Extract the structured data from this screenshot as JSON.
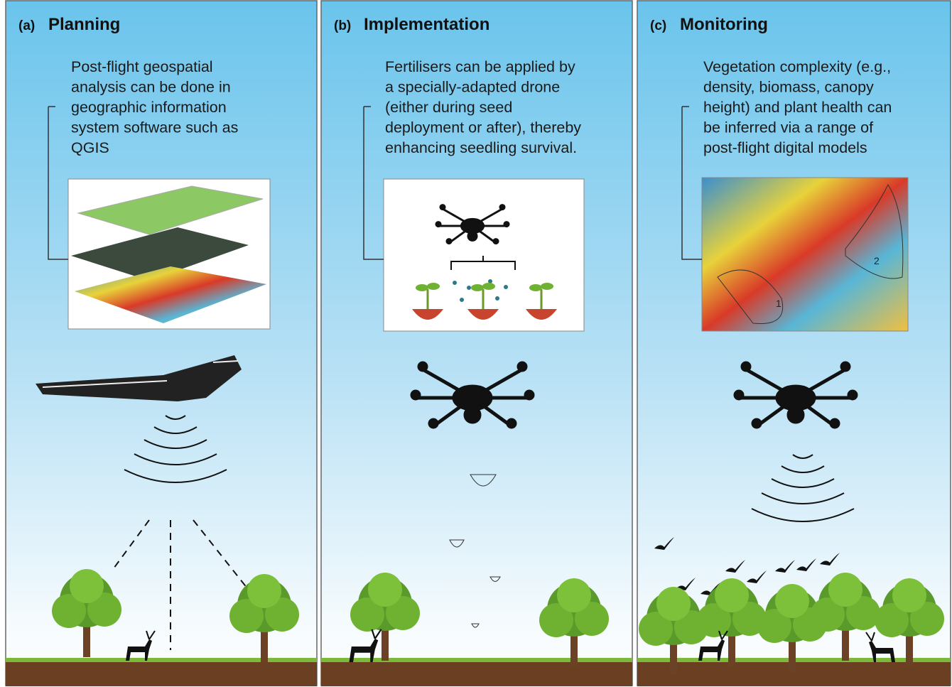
{
  "panels": [
    {
      "label": "(a)",
      "title": "Planning",
      "text": [
        "Post-flight geospatial",
        "analysis can be done in",
        "geographic information",
        "system software such as",
        "QGIS"
      ]
    },
    {
      "label": "(b)",
      "title": "Implementation",
      "text": [
        "Fertilisers can be applied by",
        "a specially-adapted drone",
        "(either during seed",
        "deployment or after), thereby",
        "enhancing seedling survival."
      ]
    },
    {
      "label": "(c)",
      "title": "Monitoring",
      "text": [
        "Vegetation complexity (e.g.,",
        "density, biomass, canopy",
        "height) and plant health can",
        "be inferred via a range of",
        "post-flight digital models"
      ]
    }
  ],
  "map_labels": [
    "1",
    "2"
  ]
}
